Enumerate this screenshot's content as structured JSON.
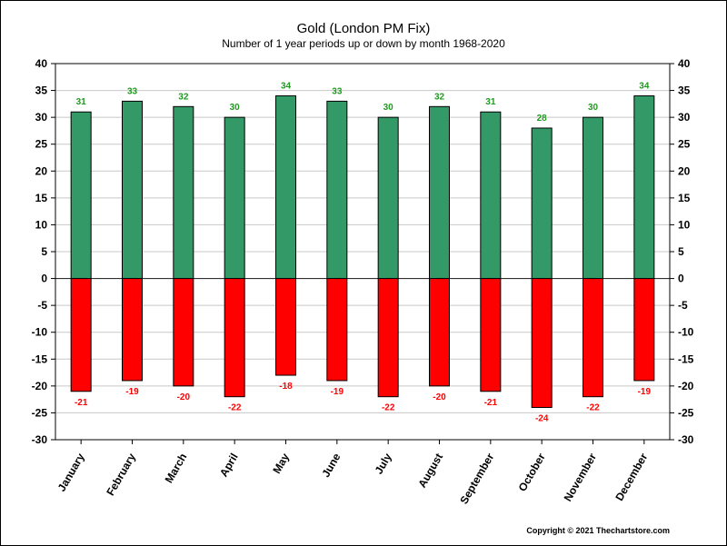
{
  "chart_data": {
    "type": "bar",
    "title": "Gold (London PM Fix)",
    "subtitle": "Number of 1 year periods up or down by month 1968-2020",
    "categories": [
      "January",
      "February",
      "March",
      "April",
      "May",
      "June",
      "July",
      "August",
      "September",
      "October",
      "November",
      "December"
    ],
    "series": [
      {
        "values": [
          31,
          33,
          32,
          30,
          34,
          33,
          30,
          32,
          31,
          28,
          30,
          34
        ],
        "color": "#339966",
        "label_color": "#1f9a1f"
      },
      {
        "values": [
          -21,
          -19,
          -20,
          -22,
          -18,
          -19,
          -22,
          -20,
          -21,
          -24,
          -22,
          -19
        ],
        "color": "#ff0000",
        "label_color": "#ff0000"
      }
    ],
    "ylim": [
      -30,
      40
    ],
    "yticks": [
      40,
      35,
      30,
      25,
      20,
      15,
      10,
      5,
      0,
      -5,
      -10,
      -15,
      -20,
      -25,
      -30
    ],
    "grid": true,
    "xlabel": "",
    "ylabel": ""
  },
  "footer": {
    "copyright": "Copyright © 2021 Thechartstore.com"
  }
}
